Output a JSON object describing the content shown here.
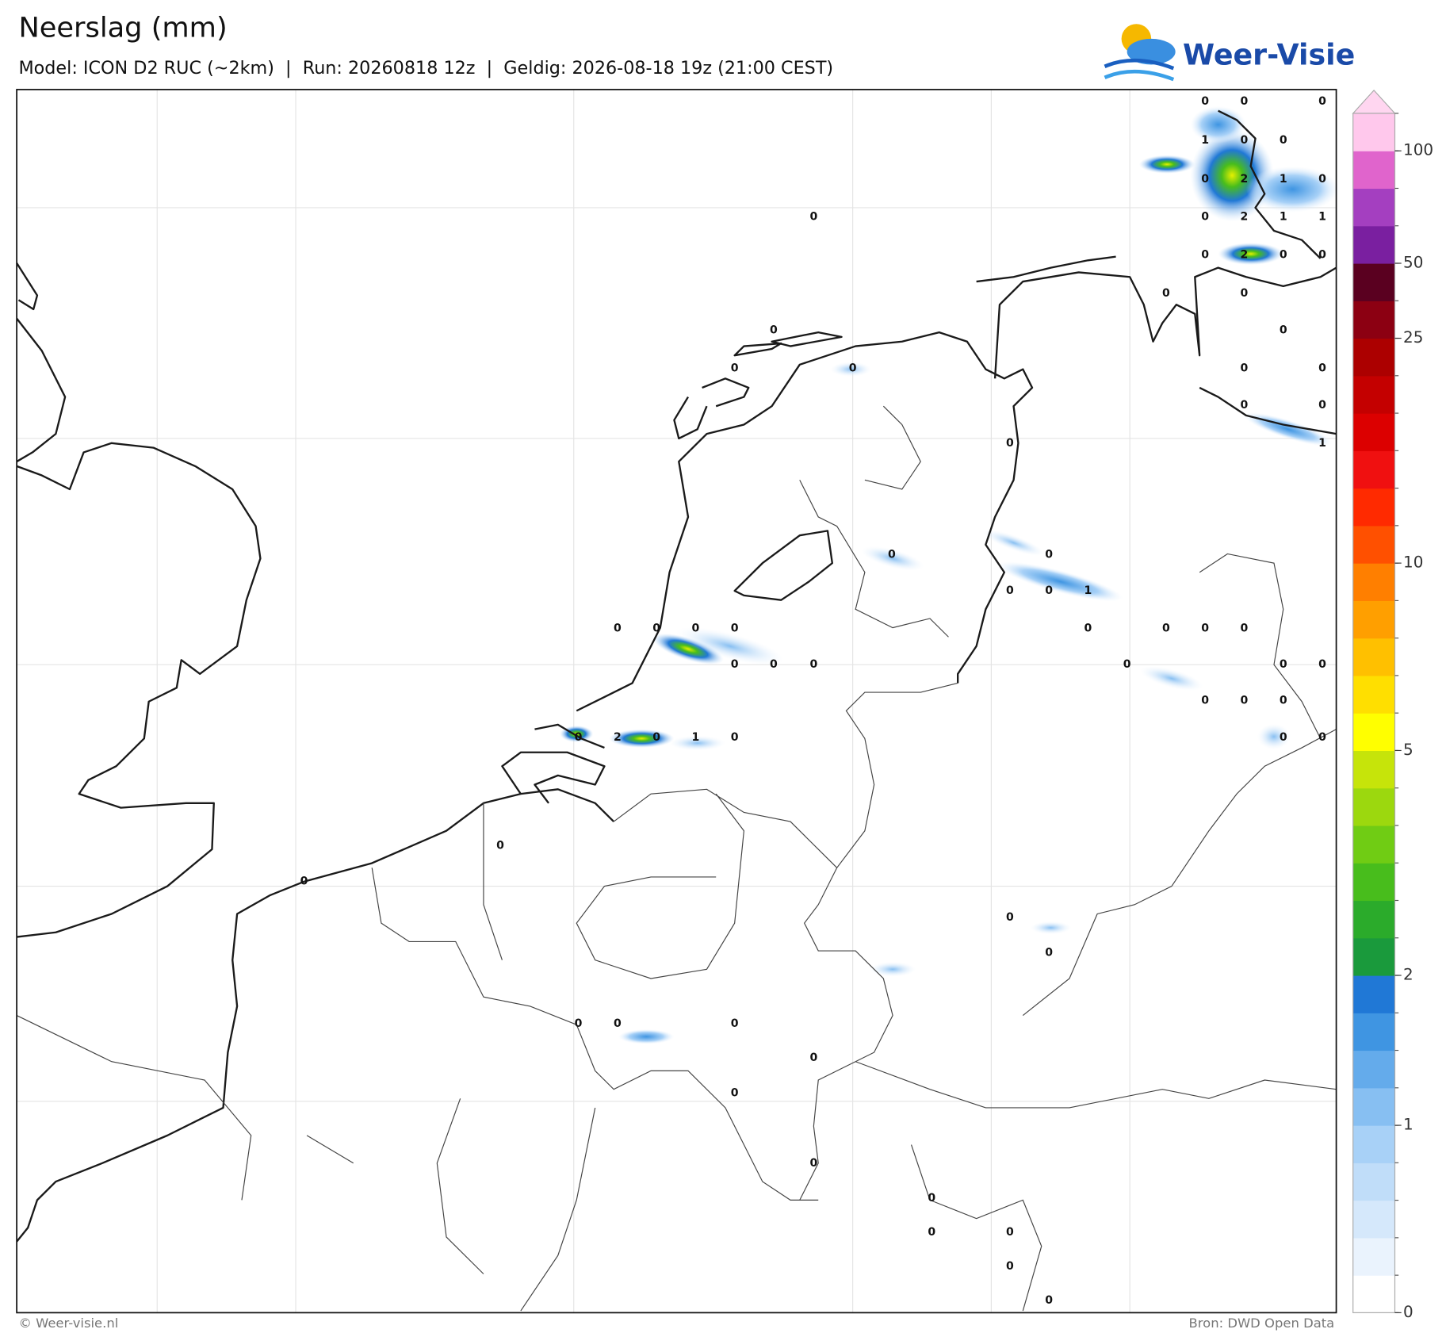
{
  "header": {
    "title": "Neerslag (mm)",
    "subtitle": "Model: ICON D2 RUC (~2km)  |  Run: 20260818 12z  |  Geldig: 2026-08-18 19z (21:00 CEST)",
    "logo": "Weer-Visie"
  },
  "footer": {
    "left": "© Weer-visie.nl",
    "right": "Bron: DWD Open Data"
  },
  "colorbar": {
    "levels": [
      0,
      0.2,
      0.4,
      0.6,
      0.8,
      1,
      1.25,
      1.5,
      1.75,
      2,
      2.5,
      3,
      3.5,
      4,
      4.5,
      5,
      6,
      7,
      8,
      9,
      10,
      12.5,
      15,
      17.5,
      20,
      22.5,
      25,
      37.5,
      50,
      66,
      83,
      100,
      125
    ],
    "colors": [
      "#ffffff",
      "#eaf3fd",
      "#d5e8fb",
      "#c0ddf9",
      "#a8d1f7",
      "#87bff2",
      "#64abeb",
      "#3f95e2",
      "#2078d6",
      "#1a9a3c",
      "#2bab2b",
      "#48bd1c",
      "#70cc14",
      "#9cd80e",
      "#c6e40a",
      "#ffff00",
      "#ffdf00",
      "#ffc000",
      "#ff9f00",
      "#ff7f00",
      "#ff5000",
      "#ff2a00",
      "#f01010",
      "#dc0000",
      "#c40000",
      "#ac0000",
      "#8c0012",
      "#5a0020",
      "#7a1fa0",
      "#a43fc0",
      "#e064cc",
      "#ffc8ec"
    ],
    "extend_color": "#ffd6f0",
    "ticks": [
      0,
      1,
      2,
      5,
      10,
      25,
      50,
      100
    ]
  },
  "point_values": [
    0,
    0,
    0,
    1,
    0,
    0,
    0,
    2,
    1,
    0,
    0,
    2,
    1,
    1,
    0,
    0,
    2,
    0,
    0,
    0,
    0,
    0,
    0,
    0,
    0,
    0,
    0,
    0,
    0,
    1,
    0,
    0,
    0,
    0,
    0,
    1,
    0,
    0,
    0,
    0,
    0,
    0,
    0,
    0,
    0,
    0,
    0,
    0,
    0,
    0,
    0,
    0,
    0,
    0,
    2,
    0,
    1,
    0,
    0,
    0,
    0,
    0,
    0,
    0,
    0,
    0,
    0,
    0,
    0,
    0,
    0,
    0,
    0,
    0,
    0
  ]
}
